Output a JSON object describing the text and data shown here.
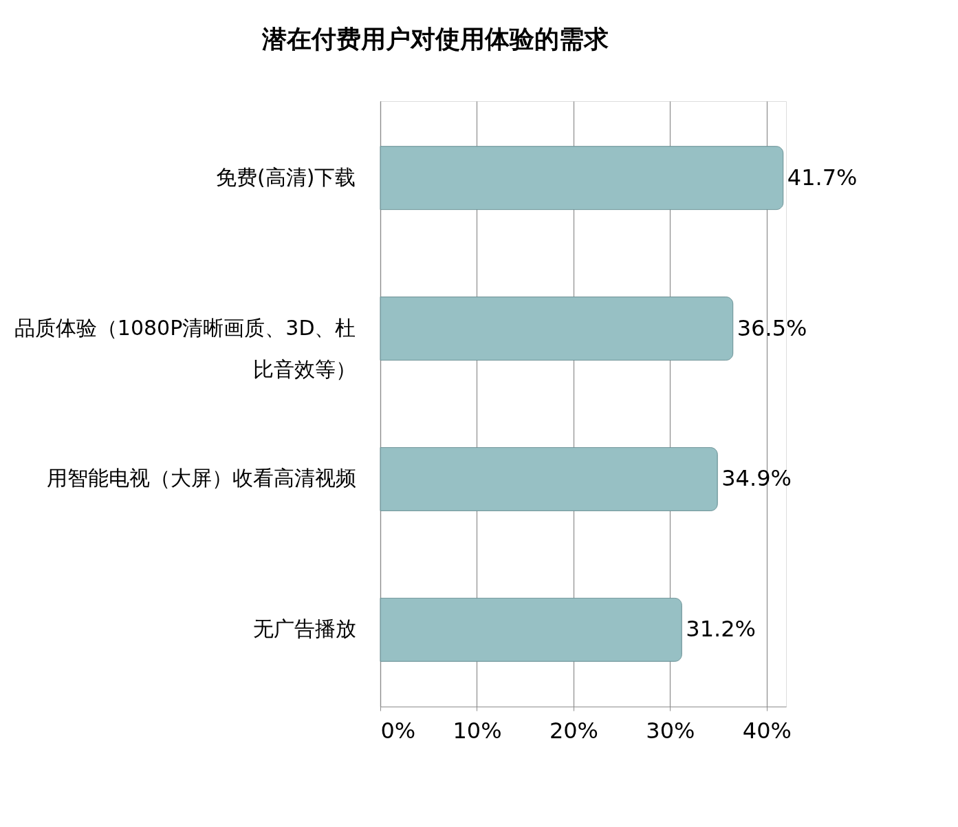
{
  "chart_data": {
    "type": "bar",
    "orientation": "horizontal",
    "title": "潜在付费用户对使用体验的需求",
    "categories": [
      "免费(高清)下载",
      "品质体验（1080P清晰画质、3D、杜比音效等）",
      "用智能电视（大屏）收看高清视频",
      "无广告播放"
    ],
    "values": [
      41.7,
      36.5,
      34.9,
      31.2
    ],
    "value_labels": [
      "41.7%",
      "36.5%",
      "34.9%",
      "31.2%"
    ],
    "color": "#97c0c4",
    "xlim": [
      0,
      42
    ],
    "xticks": [
      {
        "value": 0,
        "label": "0%"
      },
      {
        "value": 10,
        "label": "10%"
      },
      {
        "value": 20,
        "label": "20%"
      },
      {
        "value": 30,
        "label": "30%"
      },
      {
        "value": 40,
        "label": "40%"
      }
    ],
    "grid": "x"
  }
}
